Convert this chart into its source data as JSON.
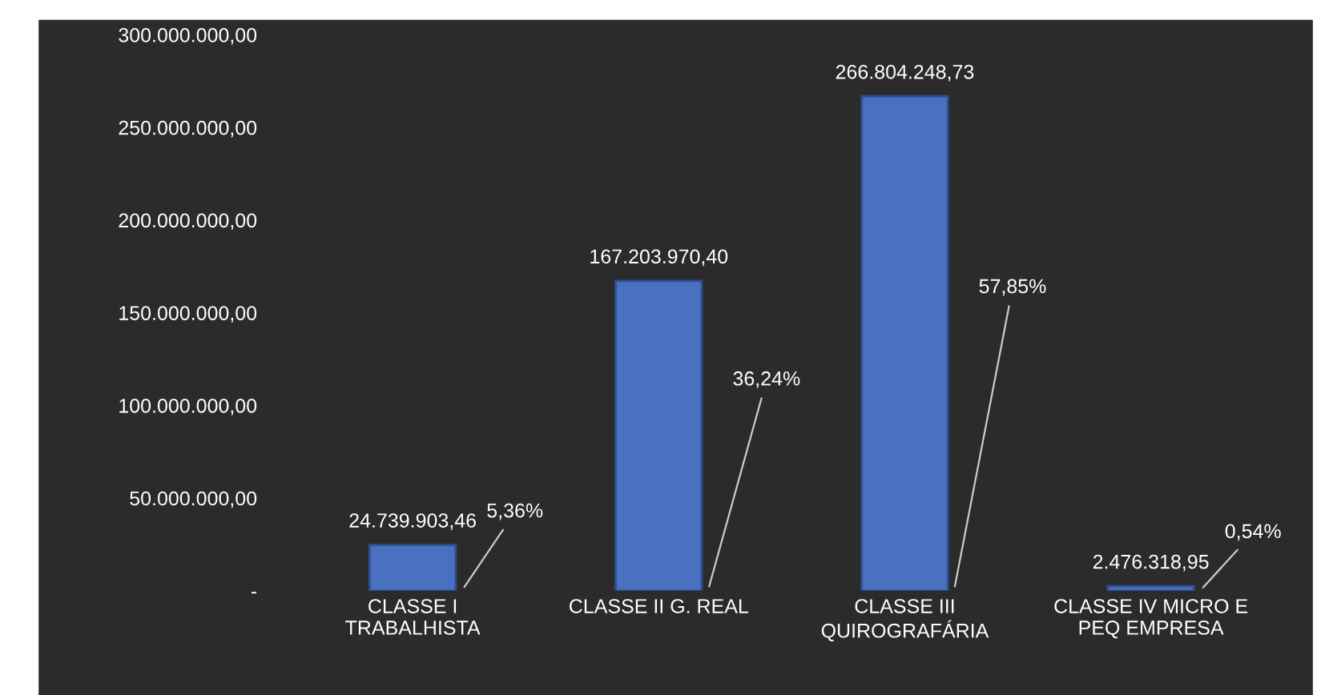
{
  "chart_data": {
    "type": "bar",
    "categories": [
      "CLASSE I\nTRABALHISTA",
      "CLASSE II G. REAL",
      "CLASSE III\nQUIROGRAFÁRIA",
      "CLASSE IV MICRO E\nPEQ EMPRESA"
    ],
    "values": [
      24739903.46,
      167203970.4,
      266804248.73,
      2476318.95
    ],
    "value_labels": [
      "24.739.903,46",
      "167.203.970,40",
      "266.804.248,73",
      "2.476.318,95"
    ],
    "color": "#4a70c2",
    "ylim": [
      0,
      300000000
    ],
    "yticks": [
      {
        "value": 0,
        "label": "-"
      },
      {
        "value": 50000000,
        "label": "50.000.000,00"
      },
      {
        "value": 100000000,
        "label": "100.000.000,00"
      },
      {
        "value": 150000000,
        "label": "150.000.000,00"
      },
      {
        "value": 200000000,
        "label": "200.000.000,00"
      },
      {
        "value": 250000000,
        "label": "250.000.000,00"
      },
      {
        "value": 300000000,
        "label": "300.000.000,00"
      }
    ],
    "annotations": [
      "5,36%",
      "36,24%",
      "57,85%",
      "0,54%"
    ],
    "grid": false
  }
}
